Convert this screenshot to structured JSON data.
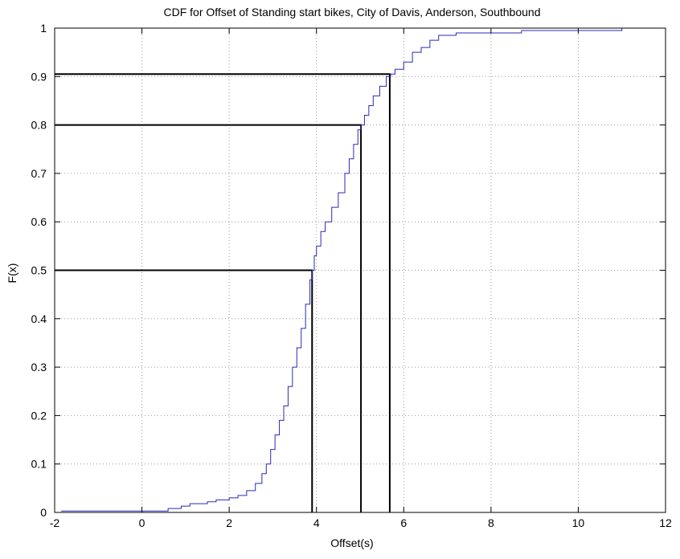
{
  "chart_data": {
    "type": "line",
    "title": "CDF for Offset of Standing start bikes, City of Davis, Anderson, Southbound",
    "xlabel": "Offset(s)",
    "ylabel": "F(x)",
    "xlim": [
      -2,
      12
    ],
    "ylim": [
      0,
      1
    ],
    "xticks": [
      -2,
      0,
      2,
      4,
      6,
      8,
      10,
      12
    ],
    "yticks": [
      0,
      0.1,
      0.2,
      0.3,
      0.4,
      0.5,
      0.6,
      0.7,
      0.8,
      0.9,
      1
    ],
    "grid": true,
    "series": [
      {
        "color": "#2a2ab8",
        "style": "step",
        "points": [
          [
            -1.85,
            0.003
          ],
          [
            0.5,
            0.003
          ],
          [
            0.6,
            0.008
          ],
          [
            0.9,
            0.013
          ],
          [
            1.1,
            0.018
          ],
          [
            1.5,
            0.022
          ],
          [
            1.7,
            0.026
          ],
          [
            2.0,
            0.03
          ],
          [
            2.2,
            0.035
          ],
          [
            2.4,
            0.045
          ],
          [
            2.6,
            0.06
          ],
          [
            2.75,
            0.08
          ],
          [
            2.85,
            0.1
          ],
          [
            2.95,
            0.13
          ],
          [
            3.05,
            0.16
          ],
          [
            3.15,
            0.19
          ],
          [
            3.25,
            0.22
          ],
          [
            3.35,
            0.26
          ],
          [
            3.45,
            0.3
          ],
          [
            3.55,
            0.34
          ],
          [
            3.65,
            0.38
          ],
          [
            3.75,
            0.43
          ],
          [
            3.85,
            0.48
          ],
          [
            3.9,
            0.5
          ],
          [
            3.95,
            0.53
          ],
          [
            4.0,
            0.55
          ],
          [
            4.1,
            0.58
          ],
          [
            4.2,
            0.6
          ],
          [
            4.35,
            0.63
          ],
          [
            4.5,
            0.66
          ],
          [
            4.65,
            0.7
          ],
          [
            4.75,
            0.73
          ],
          [
            4.85,
            0.76
          ],
          [
            4.95,
            0.79
          ],
          [
            5.02,
            0.8
          ],
          [
            5.1,
            0.82
          ],
          [
            5.2,
            0.84
          ],
          [
            5.3,
            0.86
          ],
          [
            5.45,
            0.88
          ],
          [
            5.6,
            0.9
          ],
          [
            5.7,
            0.905
          ],
          [
            5.8,
            0.915
          ],
          [
            6.0,
            0.93
          ],
          [
            6.2,
            0.95
          ],
          [
            6.4,
            0.96
          ],
          [
            6.6,
            0.975
          ],
          [
            6.8,
            0.985
          ],
          [
            7.2,
            0.99
          ],
          [
            8.0,
            0.99
          ],
          [
            8.7,
            0.995
          ],
          [
            11.0,
            1.0
          ]
        ]
      }
    ],
    "reference_lines": [
      {
        "quantile": 0.5,
        "x": 3.9,
        "color": "#000000"
      },
      {
        "quantile": 0.8,
        "x": 5.02,
        "color": "#000000"
      },
      {
        "quantile": 0.905,
        "x": 5.68,
        "color": "#000000"
      }
    ]
  }
}
